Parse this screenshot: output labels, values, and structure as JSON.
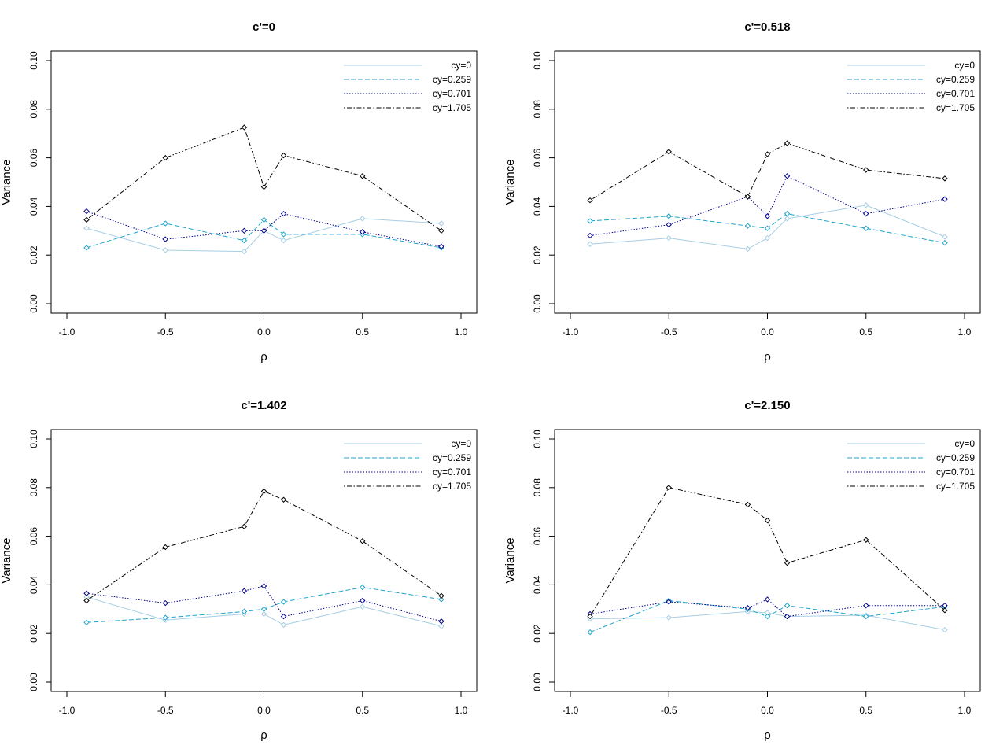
{
  "colors": {
    "background": "#ffffff",
    "axis": "#000000"
  },
  "chart_data": [
    {
      "type": "line",
      "title": "c'=0",
      "xlabel": "ρ",
      "ylabel": "Variance",
      "xlim": [
        -1.0,
        1.0
      ],
      "ylim": [
        0.0,
        0.1
      ],
      "x_ticks": [
        "-1.0",
        "-0.5",
        "0.0",
        "0.5",
        "1.0"
      ],
      "y_ticks": [
        "0.00",
        "0.02",
        "0.04",
        "0.06",
        "0.08",
        "0.10"
      ],
      "legend_position": "top-right",
      "grid": false,
      "x": [
        -0.9,
        -0.5,
        -0.1,
        0.0,
        0.1,
        0.5,
        0.9
      ],
      "series": [
        {
          "name": "cy=0",
          "color": "#a6cee3",
          "style": "solid",
          "values": [
            0.031,
            0.022,
            0.0215,
            0.03,
            0.026,
            0.035,
            0.033
          ]
        },
        {
          "name": "cy=0.259",
          "color": "#1fa5cc",
          "style": "dashed",
          "values": [
            0.023,
            0.033,
            0.026,
            0.0345,
            0.0285,
            0.0285,
            0.023
          ]
        },
        {
          "name": "cy=0.701",
          "color": "#00008b",
          "style": "dotted",
          "values": [
            0.038,
            0.0265,
            0.03,
            0.03,
            0.037,
            0.0295,
            0.0235
          ]
        },
        {
          "name": "cy=1.705",
          "color": "#000000",
          "style": "dotdash",
          "values": [
            0.0345,
            0.06,
            0.0725,
            0.048,
            0.061,
            0.0525,
            0.03
          ]
        }
      ]
    },
    {
      "type": "line",
      "title": "c'=0.518",
      "xlabel": "ρ",
      "ylabel": "Variance",
      "xlim": [
        -1.0,
        1.0
      ],
      "ylim": [
        0.0,
        0.1
      ],
      "x_ticks": [
        "-1.0",
        "-0.5",
        "0.0",
        "0.5",
        "1.0"
      ],
      "y_ticks": [
        "0.00",
        "0.02",
        "0.04",
        "0.06",
        "0.08",
        "0.10"
      ],
      "legend_position": "top-right",
      "grid": false,
      "x": [
        -0.9,
        -0.5,
        -0.1,
        0.0,
        0.1,
        0.5,
        0.9
      ],
      "series": [
        {
          "name": "cy=0",
          "color": "#a6cee3",
          "style": "solid",
          "values": [
            0.0245,
            0.027,
            0.0225,
            0.027,
            0.035,
            0.0405,
            0.0275
          ]
        },
        {
          "name": "cy=0.259",
          "color": "#1fa5cc",
          "style": "dashed",
          "values": [
            0.034,
            0.036,
            0.032,
            0.031,
            0.037,
            0.031,
            0.025
          ]
        },
        {
          "name": "cy=0.701",
          "color": "#00008b",
          "style": "dotted",
          "values": [
            0.028,
            0.0325,
            0.044,
            0.036,
            0.0525,
            0.037,
            0.043
          ]
        },
        {
          "name": "cy=1.705",
          "color": "#000000",
          "style": "dotdash",
          "values": [
            0.0425,
            0.0625,
            0.044,
            0.0615,
            0.066,
            0.055,
            0.0515
          ]
        }
      ]
    },
    {
      "type": "line",
      "title": "c'=1.402",
      "xlabel": "ρ",
      "ylabel": "Variance",
      "xlim": [
        -1.0,
        1.0
      ],
      "ylim": [
        0.0,
        0.1
      ],
      "x_ticks": [
        "-1.0",
        "-0.5",
        "0.0",
        "0.5",
        "1.0"
      ],
      "y_ticks": [
        "0.00",
        "0.02",
        "0.04",
        "0.06",
        "0.08",
        "0.10"
      ],
      "legend_position": "top-right",
      "grid": false,
      "x": [
        -0.9,
        -0.5,
        -0.1,
        0.0,
        0.1,
        0.5,
        0.9
      ],
      "series": [
        {
          "name": "cy=0",
          "color": "#a6cee3",
          "style": "solid",
          "values": [
            0.035,
            0.0255,
            0.028,
            0.028,
            0.0235,
            0.031,
            0.023
          ]
        },
        {
          "name": "cy=0.259",
          "color": "#1fa5cc",
          "style": "dashed",
          "values": [
            0.0245,
            0.0265,
            0.029,
            0.03,
            0.033,
            0.039,
            0.034
          ]
        },
        {
          "name": "cy=0.701",
          "color": "#00008b",
          "style": "dotted",
          "values": [
            0.0365,
            0.0325,
            0.0375,
            0.0395,
            0.027,
            0.0335,
            0.025
          ]
        },
        {
          "name": "cy=1.705",
          "color": "#000000",
          "style": "dotdash",
          "values": [
            0.0335,
            0.0555,
            0.064,
            0.0785,
            0.075,
            0.058,
            0.0355
          ]
        }
      ]
    },
    {
      "type": "line",
      "title": "c'=2.150",
      "xlabel": "ρ",
      "ylabel": "Variance",
      "xlim": [
        -1.0,
        1.0
      ],
      "ylim": [
        0.0,
        0.1
      ],
      "x_ticks": [
        "-1.0",
        "-0.5",
        "0.0",
        "0.5",
        "1.0"
      ],
      "y_ticks": [
        "0.00",
        "0.02",
        "0.04",
        "0.06",
        "0.08",
        "0.10"
      ],
      "legend_position": "top-right",
      "grid": false,
      "x": [
        -0.9,
        -0.5,
        -0.1,
        0.0,
        0.1,
        0.5,
        0.9
      ],
      "series": [
        {
          "name": "cy=0",
          "color": "#a6cee3",
          "style": "solid",
          "values": [
            0.026,
            0.0265,
            0.029,
            0.0285,
            0.027,
            0.0275,
            0.0215
          ]
        },
        {
          "name": "cy=0.259",
          "color": "#1fa5cc",
          "style": "dashed",
          "values": [
            0.0205,
            0.0335,
            0.03,
            0.027,
            0.0315,
            0.027,
            0.031
          ]
        },
        {
          "name": "cy=0.701",
          "color": "#00008b",
          "style": "dotted",
          "values": [
            0.028,
            0.033,
            0.0305,
            0.034,
            0.027,
            0.0315,
            0.0315
          ]
        },
        {
          "name": "cy=1.705",
          "color": "#000000",
          "style": "dotdash",
          "values": [
            0.027,
            0.08,
            0.073,
            0.0665,
            0.049,
            0.0585,
            0.0295
          ]
        }
      ]
    }
  ]
}
